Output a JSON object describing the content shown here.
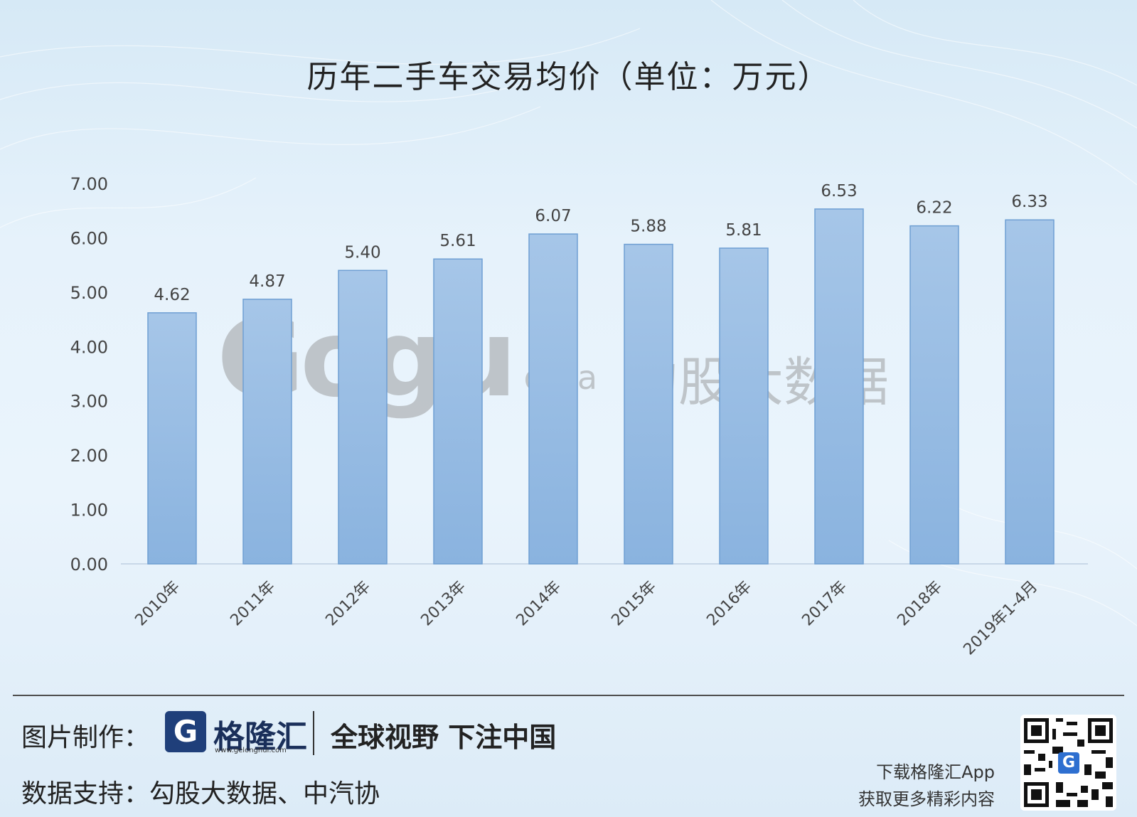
{
  "title": "历年二手车交易均价（单位：万元）",
  "colors": {
    "bar": "#8ab3df",
    "bar_edge": "#6f9fd3",
    "axis": "#c8d8e8",
    "label": "#444444"
  },
  "chart_data": {
    "type": "bar",
    "categories": [
      "2010年",
      "2011年",
      "2012年",
      "2013年",
      "2014年",
      "2015年",
      "2016年",
      "2017年",
      "2018年",
      "2019年1-4月"
    ],
    "values": [
      4.62,
      4.87,
      5.4,
      5.61,
      6.07,
      5.88,
      5.81,
      6.53,
      6.22,
      6.33
    ],
    "value_labels": [
      "4.62",
      "4.87",
      "5.40",
      "5.61",
      "6.07",
      "5.88",
      "5.81",
      "6.53",
      "6.22",
      "6.33"
    ],
    "yticks": [
      "0.00",
      "1.00",
      "2.00",
      "3.00",
      "4.00",
      "5.00",
      "6.00",
      "7.00"
    ],
    "ylim": [
      0,
      7
    ],
    "grid": false
  },
  "watermark": {
    "logo": "Gogu",
    "suffix": "data",
    "cn": "勾股大数据"
  },
  "footer": {
    "made_by_label": "图片制作：",
    "brand_mark": "G",
    "brand_name": "格隆汇",
    "brand_url": "www.gelonghui.com",
    "slogan": "全球视野 下注中国",
    "source_label": "数据支持：",
    "source_text": "勾股大数据、中汽协",
    "app_line1": "下载格隆汇App",
    "app_line2": "获取更多精彩内容",
    "qr_mark": "G"
  }
}
